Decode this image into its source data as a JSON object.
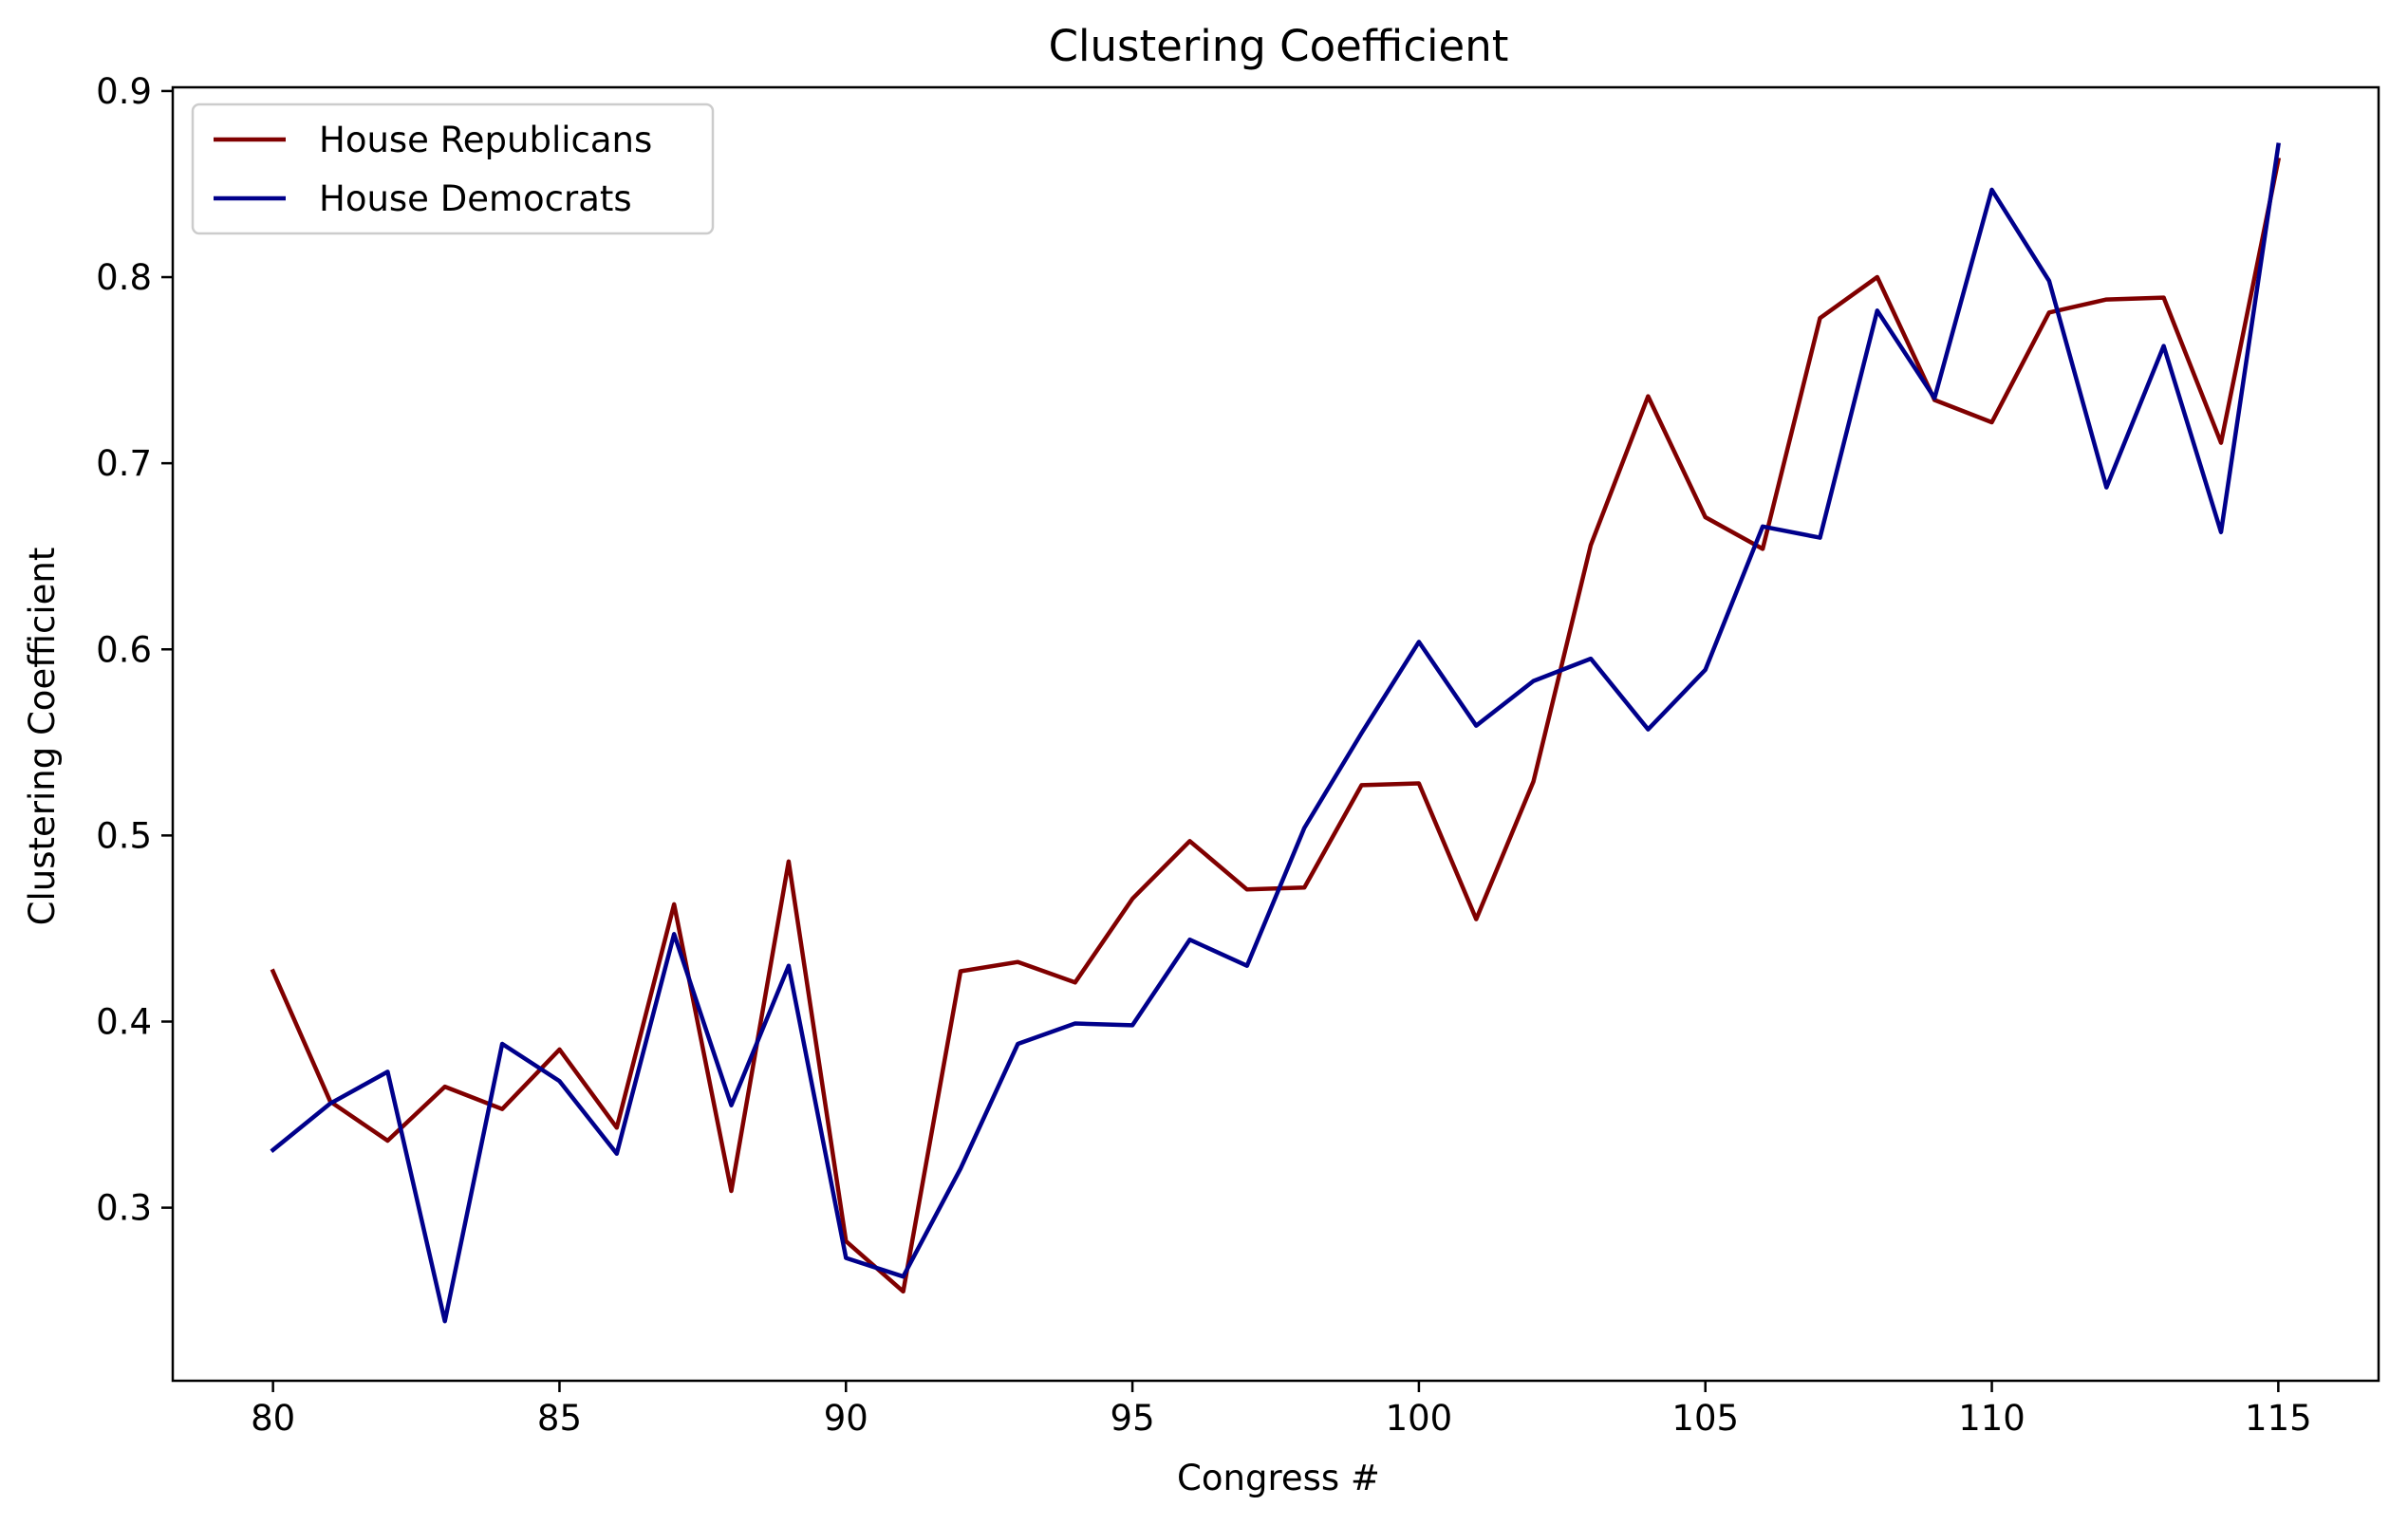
{
  "chart_data": {
    "type": "line",
    "title": "Clustering Coefficient",
    "xlabel": "Congress #",
    "ylabel": "Clustering Coefficient",
    "xlim": [
      78.25,
      116.75
    ],
    "ylim": [
      0.207,
      0.902
    ],
    "xticks": [
      80,
      85,
      90,
      95,
      100,
      105,
      110,
      115
    ],
    "yticks": [
      0.3,
      0.4,
      0.5,
      0.6,
      0.7,
      0.8,
      0.9
    ],
    "ytick_labels": [
      "0.3",
      "0.4",
      "0.5",
      "0.6",
      "0.7",
      "0.8",
      "0.9"
    ],
    "grid": false,
    "legend_position": "top-left",
    "x": [
      80,
      81,
      82,
      83,
      84,
      85,
      86,
      87,
      88,
      89,
      90,
      91,
      92,
      93,
      94,
      95,
      96,
      97,
      98,
      99,
      100,
      101,
      102,
      103,
      104,
      105,
      106,
      107,
      108,
      109,
      110,
      111,
      112,
      113,
      114,
      115
    ],
    "series": [
      {
        "name": "House Republicans",
        "color": "#800000",
        "values": [
          0.427,
          0.357,
          0.336,
          0.365,
          0.353,
          0.385,
          0.343,
          0.463,
          0.309,
          0.486,
          0.282,
          0.255,
          0.427,
          0.432,
          0.421,
          0.466,
          0.497,
          0.471,
          0.472,
          0.527,
          0.528,
          0.455,
          0.529,
          0.656,
          0.736,
          0.671,
          0.654,
          0.778,
          0.8,
          0.734,
          0.722,
          0.781,
          0.788,
          0.789,
          0.711,
          0.863
        ]
      },
      {
        "name": "House Democrats",
        "color": "#00008b",
        "values": [
          0.331,
          0.356,
          0.373,
          0.239,
          0.388,
          0.368,
          0.329,
          0.447,
          0.355,
          0.43,
          0.273,
          0.263,
          0.321,
          0.388,
          0.399,
          0.398,
          0.444,
          0.43,
          0.504,
          0.555,
          0.604,
          0.559,
          0.583,
          0.595,
          0.557,
          0.589,
          0.666,
          0.66,
          0.782,
          0.735,
          0.847,
          0.798,
          0.687,
          0.763,
          0.663,
          0.871
        ]
      }
    ]
  }
}
